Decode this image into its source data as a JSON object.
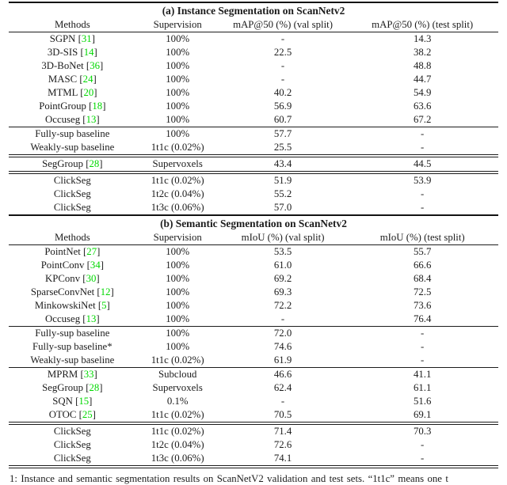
{
  "colors": {
    "background": "#ffffff",
    "text": "#1c1c1c",
    "citation_green": "#00d800"
  },
  "caption": {
    "text": "1: Instance and semantic segmentation results on ScanNetV2 validation and test sets. “1t1c” means one t"
  },
  "tables": [
    {
      "title": "(a) Instance Segmentation on ScanNetv2",
      "headers": [
        "Methods",
        "Supervision",
        "mAP@50 (%) (val split)",
        "mAP@50 (%) (test split)"
      ],
      "sections": [
        {
          "rule_after": "single",
          "rows": [
            {
              "method": "SGPN",
              "ref": "31",
              "supervision": "100%",
              "val": "-",
              "test": "14.3"
            },
            {
              "method": "3D-SIS",
              "ref": "14",
              "supervision": "100%",
              "val": "22.5",
              "test": "38.2"
            },
            {
              "method": "3D-BoNet",
              "ref": "36",
              "supervision": "100%",
              "val": "-",
              "test": "48.8"
            },
            {
              "method": "MASC",
              "ref": "24",
              "supervision": "100%",
              "val": "-",
              "test": "44.7"
            },
            {
              "method": "MTML",
              "ref": "20",
              "supervision": "100%",
              "val": "40.2",
              "test": "54.9"
            },
            {
              "method": "PointGroup",
              "ref": "18",
              "supervision": "100%",
              "val": "56.9",
              "test": "63.6"
            },
            {
              "method": "Occuseg",
              "ref": "13",
              "supervision": "100%",
              "val": "60.7",
              "test": "67.2"
            }
          ]
        },
        {
          "rule_after": "double",
          "rows": [
            {
              "method": "Fully-sup baseline",
              "ref": null,
              "supervision": "100%",
              "val": "57.7",
              "test": "-"
            },
            {
              "method": "Weakly-sup baseline",
              "ref": null,
              "supervision": "1t1c (0.02%)",
              "val": "25.5",
              "test": "-"
            }
          ]
        },
        {
          "rule_after": "double",
          "rows": [
            {
              "method": "SegGroup",
              "ref": "28",
              "supervision": "Supervoxels",
              "val": "43.4",
              "test": "44.5"
            }
          ]
        },
        {
          "rule_after": null,
          "rows": [
            {
              "method": "ClickSeg",
              "ref": null,
              "supervision": "1t1c (0.02%)",
              "val": "51.9",
              "test": "53.9"
            },
            {
              "method": "ClickSeg",
              "ref": null,
              "supervision": "1t2c (0.04%)",
              "val": "55.2",
              "test": "-"
            },
            {
              "method": "ClickSeg",
              "ref": null,
              "supervision": "1t3c (0.06%)",
              "val": "57.0",
              "test": "-"
            }
          ]
        }
      ]
    },
    {
      "title": "(b) Semantic Segmentation on ScanNetv2",
      "headers": [
        "Methods",
        "Supervision",
        "mIoU (%) (val split)",
        "mIoU (%) (test split)"
      ],
      "sections": [
        {
          "rule_after": "single",
          "rows": [
            {
              "method": "PointNet",
              "ref": "27",
              "supervision": "100%",
              "val": "53.5",
              "test": "55.7"
            },
            {
              "method": "PointConv",
              "ref": "34",
              "supervision": "100%",
              "val": "61.0",
              "test": "66.6"
            },
            {
              "method": "KPConv",
              "ref": "30",
              "supervision": "100%",
              "val": "69.2",
              "test": "68.4"
            },
            {
              "method": "SparseConvNet",
              "ref": "12",
              "supervision": "100%",
              "val": "69.3",
              "test": "72.5"
            },
            {
              "method": "MinkowskiNet",
              "ref": "5",
              "supervision": "100%",
              "val": "72.2",
              "test": "73.6"
            },
            {
              "method": "Occuseg",
              "ref": "13",
              "supervision": "100%",
              "val": "-",
              "test": "76.4"
            }
          ]
        },
        {
          "rule_after": "single",
          "rows": [
            {
              "method": "Fully-sup baseline",
              "ref": null,
              "supervision": "100%",
              "val": "72.0",
              "test": "-"
            },
            {
              "method": "Fully-sup baseline*",
              "ref": null,
              "supervision": "100%",
              "val": "74.6",
              "test": "-"
            },
            {
              "method": "Weakly-sup baseline",
              "ref": null,
              "supervision": "1t1c (0.02%)",
              "val": "61.9",
              "test": "-"
            }
          ]
        },
        {
          "rule_after": "double",
          "rows": [
            {
              "method": "MPRM",
              "ref": "33",
              "supervision": "Subcloud",
              "val": "46.6",
              "test": "41.1"
            },
            {
              "method": "SegGroup",
              "ref": "28",
              "supervision": "Supervoxels",
              "val": "62.4",
              "test": "61.1"
            },
            {
              "method": "SQN",
              "ref": "15",
              "supervision": "0.1%",
              "val": "-",
              "test": "51.6"
            },
            {
              "method": "OTOC",
              "ref": "25",
              "supervision": "1t1c (0.02%)",
              "val": "70.5",
              "test": "69.1"
            }
          ]
        },
        {
          "rule_after": null,
          "rows": [
            {
              "method": "ClickSeg",
              "ref": null,
              "supervision": "1t1c (0.02%)",
              "val": "71.4",
              "test": "70.3"
            },
            {
              "method": "ClickSeg",
              "ref": null,
              "supervision": "1t2c (0.04%)",
              "val": "72.6",
              "test": "-"
            },
            {
              "method": "ClickSeg",
              "ref": null,
              "supervision": "1t3c (0.06%)",
              "val": "74.1",
              "test": "-"
            }
          ]
        }
      ]
    }
  ]
}
